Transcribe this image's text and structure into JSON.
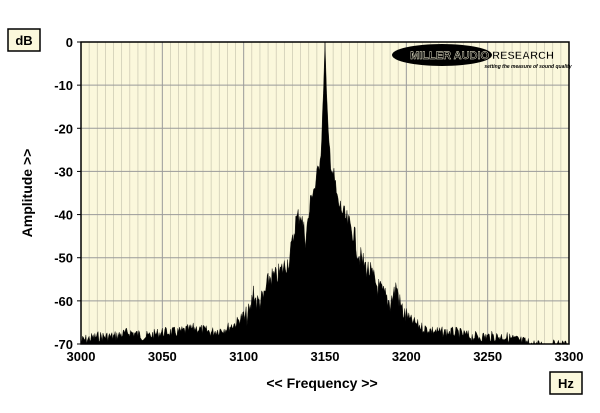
{
  "chart_data": {
    "type": "area",
    "title": "",
    "xlabel": "<< Frequency >>",
    "ylabel": "Amplitude >>",
    "x_unit": "Hz",
    "y_unit": "dB",
    "xlim": [
      3000,
      3300
    ],
    "ylim": [
      -70,
      0
    ],
    "x_ticks": [
      3000,
      3050,
      3100,
      3150,
      3200,
      3250,
      3300
    ],
    "y_ticks": [
      0,
      -10,
      -20,
      -30,
      -40,
      -50,
      -60,
      -70
    ],
    "grid": true,
    "background": "#fbf8dc",
    "fill_color": "#000000",
    "series": [
      {
        "x": [
          3000,
          3010,
          3020,
          3030,
          3040,
          3050,
          3060,
          3070,
          3080,
          3090,
          3095,
          3100,
          3104,
          3106,
          3108,
          3112,
          3116,
          3120,
          3124,
          3128,
          3130,
          3132,
          3135,
          3138,
          3140,
          3142,
          3144,
          3146,
          3148,
          3149,
          3150,
          3151,
          3152,
          3154,
          3156,
          3158,
          3160,
          3162,
          3165,
          3168,
          3170,
          3174,
          3178,
          3182,
          3186,
          3190,
          3194,
          3196,
          3198,
          3202,
          3206,
          3210,
          3220,
          3230,
          3240,
          3250,
          3260,
          3270,
          3280,
          3290,
          3300
        ],
        "values": [
          -68,
          -67,
          -67,
          -66,
          -67,
          -66,
          -66,
          -65,
          -66,
          -65,
          -64,
          -62,
          -60,
          -55,
          -58,
          -57,
          -52,
          -52,
          -50,
          -48,
          -44,
          -39,
          -37,
          -43,
          -38,
          -32,
          -31,
          -27,
          -20,
          -12,
          0,
          -12,
          -20,
          -26,
          -30,
          -35,
          -36,
          -38,
          -40,
          -42,
          -46,
          -49,
          -51,
          -54,
          -56,
          -58,
          -54,
          -58,
          -60,
          -63,
          -64,
          -65,
          -66,
          -66,
          -67,
          -67,
          -67,
          -68,
          -69,
          -69,
          -69
        ]
      }
    ]
  },
  "units": {
    "y_unit_label": "dB",
    "x_unit_label": "Hz"
  },
  "logo": {
    "main_text": "MILLER AUDIO RESEARCH",
    "tagline": "setting the measure of sound quality"
  }
}
